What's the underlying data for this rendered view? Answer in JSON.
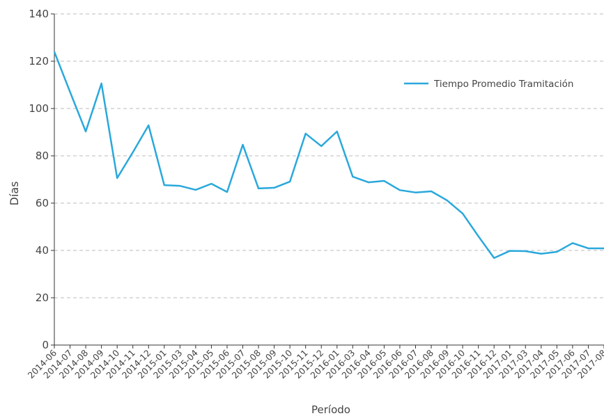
{
  "chart_data": {
    "type": "line",
    "x_label": "Período",
    "y_label": "Días",
    "categories": [
      "2014-06",
      "2014-07",
      "2014-08",
      "2014-09",
      "2014-10",
      "2014-11",
      "2014-12",
      "2015-01",
      "2015-03",
      "2015-04",
      "2015-05",
      "2015-06",
      "2015-07",
      "2015-08",
      "2015-09",
      "2015-10",
      "2015-11",
      "2015-12",
      "2016-01",
      "2016-03",
      "2016-04",
      "2016-05",
      "2016-06",
      "2016-07",
      "2016-08",
      "2016-09",
      "2016-10",
      "2016-11",
      "2016-12",
      "2017-01",
      "2017-03",
      "2017-04",
      "2017-05",
      "2017-06",
      "2017-07",
      "2017-08"
    ],
    "series": [
      {
        "name": "Tiempo Promedio Tramitación",
        "color": "#29a8dc",
        "values": [
          124,
          107,
          90.3,
          110.6,
          70.6,
          81.5,
          92.9,
          67.6,
          67.3,
          65.6,
          68.2,
          64.7,
          84.7,
          66.2,
          66.5,
          69.1,
          89.4,
          84.1,
          90.3,
          71.2,
          68.8,
          69.4,
          65.5,
          64.5,
          65,
          61.2,
          55.6,
          46,
          36.8,
          39.8,
          39.7,
          38.6,
          39.4,
          43.1,
          40.9,
          40.9
        ]
      }
    ],
    "ylim": [
      0,
      140
    ],
    "yticks": [
      0,
      20,
      40,
      60,
      80,
      100,
      120,
      140
    ],
    "grid": true,
    "legend": "upper right"
  }
}
